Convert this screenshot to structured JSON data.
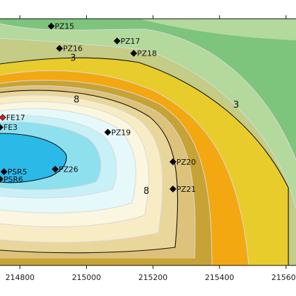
{
  "chart_data": {
    "type": "contour",
    "title": "",
    "xlabel": "",
    "ylabel": "",
    "xlim": [
      214740,
      215630
    ],
    "ylim": [
      0,
      100
    ],
    "x_ticks": [
      214800,
      215000,
      215200,
      215400,
      215600
    ],
    "x_tick_labels": [
      "214800",
      "215000",
      "215200",
      "215400",
      "215600"
    ],
    "contour_labels": [
      {
        "text": "3",
        "x": 214960,
        "y": 84
      },
      {
        "text": "3",
        "x": 215450,
        "y": 65
      },
      {
        "text": "8",
        "x": 214970,
        "y": 67
      },
      {
        "text": "8",
        "x": 215180,
        "y": 30
      }
    ],
    "wells": [
      {
        "name": "PZ15",
        "x": 214894,
        "y": 97,
        "color": "#000000"
      },
      {
        "name": "PZ16",
        "x": 214919,
        "y": 88,
        "color": "#000000"
      },
      {
        "name": "PZ17",
        "x": 215092,
        "y": 91,
        "color": "#000000"
      },
      {
        "name": "PZ18",
        "x": 215142,
        "y": 86,
        "color": "#000000"
      },
      {
        "name": "FE17",
        "x": 214748,
        "y": 60,
        "color": "#d62020"
      },
      {
        "name": "FE3",
        "x": 214740,
        "y": 56,
        "color": "#000000"
      },
      {
        "name": "PZ19",
        "x": 215064,
        "y": 54,
        "color": "#000000"
      },
      {
        "name": "PZ20",
        "x": 215260,
        "y": 42,
        "color": "#000000"
      },
      {
        "name": "PSR5",
        "x": 214752,
        "y": 38,
        "color": "#000000"
      },
      {
        "name": "PZ26",
        "x": 214906,
        "y": 39,
        "color": "#000000"
      },
      {
        "name": "PSR6",
        "x": 214740,
        "y": 35,
        "color": "#000000"
      },
      {
        "name": "PZ21",
        "x": 215260,
        "y": 31,
        "color": "#000000"
      }
    ],
    "colors": {
      "outer_green": "#7dc47c",
      "light_green": "#b3d99c",
      "olive": "#c4cc85",
      "yellow": "#e8cc2c",
      "orange": "#f3a812",
      "gold": "#c7a336",
      "tan": "#dcc27a",
      "sand": "#e9d69a",
      "cream": "#f7ecc4",
      "ivory": "#fbf6df",
      "pale_cyan": "#e5f9fb",
      "light_cyan": "#c8f1f7",
      "cyan": "#8fe0ef",
      "blue": "#2bb9e8"
    }
  }
}
